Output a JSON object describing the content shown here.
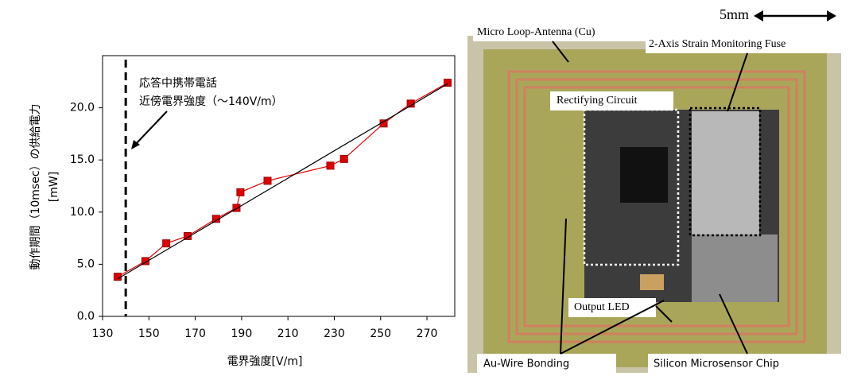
{
  "chart_data": {
    "type": "line",
    "x_label": "電界強度[V/m]",
    "y_label": "動作期間（10msec）の供給電力",
    "y_unit": "[mW]",
    "xlim": [
      130,
      282
    ],
    "ylim": [
      0,
      25
    ],
    "xticks": [
      130,
      150,
      170,
      190,
      210,
      230,
      250,
      270
    ],
    "yticks": [
      {
        "value": 0,
        "label": "0.0"
      },
      {
        "value": 5,
        "label": "5.0"
      },
      {
        "value": 10,
        "label": "10.0"
      },
      {
        "value": 15,
        "label": "15.0"
      },
      {
        "value": 20,
        "label": "20.0"
      }
    ],
    "series": [
      {
        "color": "#e00000",
        "marker": "square",
        "x": [
          136.5,
          148.5,
          157.5,
          166.7,
          179,
          187.8,
          189.5,
          201.2,
          228.3,
          234.2,
          251.3,
          263,
          278.9
        ],
        "values": [
          3.8,
          5.3,
          7.0,
          7.7,
          9.35,
          10.4,
          11.9,
          13.0,
          14.45,
          15.1,
          18.5,
          20.4,
          22.4
        ]
      },
      {
        "color": "#000000",
        "marker": "none",
        "x": [
          136.5,
          278.9
        ],
        "values": [
          3.6,
          22.3
        ]
      }
    ],
    "vline": {
      "x": 140,
      "color": "#000000"
    },
    "annotations": [
      "応答中携帯電話",
      "近傍電界強度（～140V/m）"
    ]
  },
  "photo": {
    "scale": "5mm",
    "labels": [
      "Micro Loop-Antenna (Cu)",
      "2-Axis Strain Monitoring Fuse",
      "Rectifying Circuit",
      "Output LED",
      "Au-Wire Bonding",
      "Silicon Microsensor Chip"
    ]
  }
}
